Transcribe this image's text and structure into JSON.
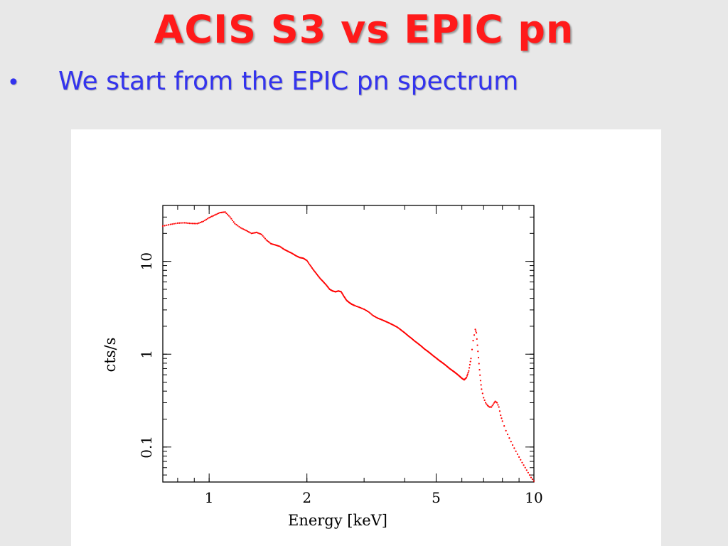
{
  "slide": {
    "title": "ACIS S3 vs EPIC pn",
    "bullet_marker": "•",
    "bullet_text": "We start from the EPIC pn spectrum",
    "title_color": "#ff1a1a",
    "bullet_color": "#3333ee",
    "background": "#e8e8e8"
  },
  "chart_data": {
    "type": "scatter",
    "title": "",
    "xlabel": "Energy [keV]",
    "ylabel": "cts/s",
    "x_scale": "log",
    "y_scale": "log",
    "xlim": [
      0.72,
      10.0
    ],
    "ylim": [
      0.042,
      40
    ],
    "x_ticks": [
      {
        "value": 1,
        "label": "1"
      },
      {
        "value": 2,
        "label": "2"
      },
      {
        "value": 5,
        "label": "5"
      },
      {
        "value": 10,
        "label": "10"
      }
    ],
    "y_ticks": [
      {
        "value": 0.1,
        "label": "0.1"
      },
      {
        "value": 1,
        "label": "1"
      },
      {
        "value": 10,
        "label": "10"
      }
    ],
    "grid": false,
    "legend": "none",
    "series_color": "#ff0000",
    "series": [
      {
        "x": [
          0.72,
          0.76,
          0.8,
          0.84,
          0.88,
          0.92,
          0.96,
          1.0,
          1.04,
          1.08,
          1.12,
          1.16,
          1.2,
          1.25,
          1.3,
          1.35,
          1.4,
          1.45,
          1.5,
          1.55,
          1.6,
          1.65,
          1.7,
          1.75,
          1.8,
          1.85,
          1.9,
          1.95,
          2.0,
          2.05,
          2.1,
          2.15,
          2.2,
          2.25,
          2.3,
          2.35,
          2.4,
          2.45,
          2.5,
          2.55,
          2.6,
          2.65,
          2.7,
          2.75,
          2.8,
          2.9,
          3.0,
          3.1,
          3.2,
          3.3,
          3.4,
          3.5,
          3.6,
          3.7,
          3.8,
          3.9,
          4.0,
          4.1,
          4.2,
          4.3,
          4.4,
          4.5,
          4.6,
          4.7,
          4.8,
          4.9,
          5.0,
          5.1,
          5.2,
          5.3,
          5.4,
          5.5,
          5.6,
          5.7,
          5.8,
          5.9,
          6.0,
          6.1,
          6.2,
          6.3,
          6.4,
          6.5,
          6.6,
          6.65,
          6.7,
          6.75,
          6.8,
          6.85,
          6.9,
          7.0,
          7.1,
          7.2,
          7.3,
          7.4,
          7.5,
          7.6,
          7.7,
          7.8,
          7.9,
          8.0,
          8.2,
          8.4,
          8.6,
          8.8,
          9.0,
          9.2,
          9.4,
          9.6,
          9.8,
          10.0
        ],
        "y": [
          24.0,
          25.0,
          25.8,
          26.0,
          25.6,
          25.5,
          27.0,
          29.5,
          31.5,
          33.5,
          34.0,
          30.0,
          25.5,
          23.0,
          21.5,
          20.0,
          20.5,
          19.5,
          17.0,
          15.5,
          15.0,
          14.5,
          13.5,
          12.8,
          12.2,
          11.5,
          11.0,
          10.8,
          10.2,
          9.0,
          8.0,
          7.2,
          6.5,
          6.0,
          5.5,
          5.0,
          4.8,
          4.7,
          4.8,
          4.7,
          4.2,
          3.8,
          3.6,
          3.45,
          3.35,
          3.2,
          3.05,
          2.85,
          2.6,
          2.45,
          2.35,
          2.25,
          2.15,
          2.05,
          1.95,
          1.82,
          1.7,
          1.58,
          1.48,
          1.38,
          1.3,
          1.22,
          1.14,
          1.08,
          1.02,
          0.96,
          0.91,
          0.86,
          0.82,
          0.78,
          0.74,
          0.7,
          0.67,
          0.64,
          0.61,
          0.58,
          0.55,
          0.53,
          0.56,
          0.66,
          0.9,
          1.4,
          1.85,
          1.7,
          1.25,
          0.92,
          0.68,
          0.52,
          0.42,
          0.34,
          0.3,
          0.28,
          0.27,
          0.27,
          0.29,
          0.31,
          0.3,
          0.27,
          0.22,
          0.19,
          0.15,
          0.125,
          0.105,
          0.09,
          0.078,
          0.068,
          0.06,
          0.053,
          0.047,
          0.043
        ]
      }
    ]
  }
}
